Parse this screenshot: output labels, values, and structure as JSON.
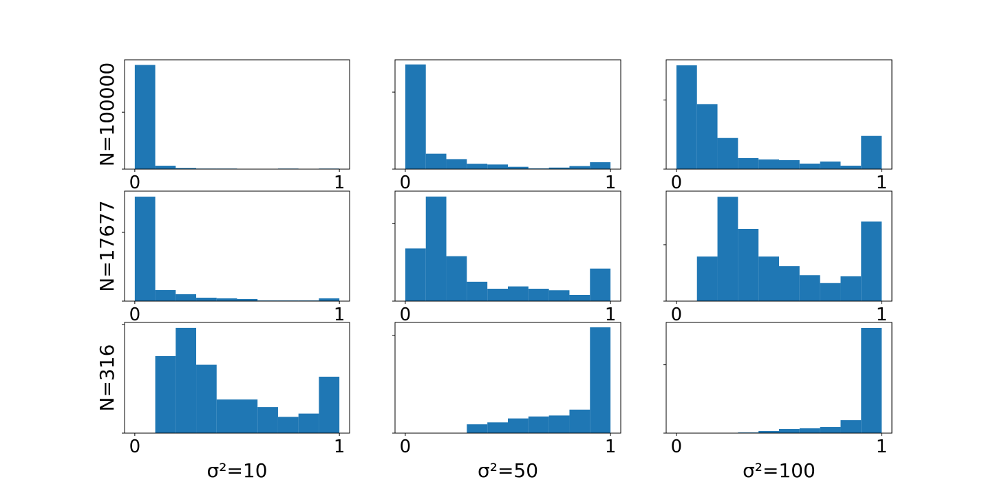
{
  "chart_data": [
    {
      "type": "histogram",
      "ylabel": "N=100000",
      "bins": [
        0,
        0.1,
        0.2,
        0.3,
        0.4,
        0.5,
        0.6,
        0.7,
        0.8,
        0.9,
        1
      ],
      "values": [
        1.83,
        0.06,
        0.02,
        0.01,
        0.01,
        0,
        0,
        0.01,
        0,
        0.01
      ],
      "color": "#1f77b4",
      "xlim": [
        -0.05,
        1.05
      ],
      "xticks": [
        0,
        1
      ],
      "ylim": [
        0,
        1.92
      ],
      "yticks": [
        0,
        1
      ]
    },
    {
      "type": "histogram",
      "bins": [
        0,
        0.1,
        0.2,
        0.3,
        0.4,
        0.5,
        0.6,
        0.7,
        0.8,
        0.9,
        1
      ],
      "values": [
        1.36,
        0.2,
        0.13,
        0.07,
        0.06,
        0.03,
        0.01,
        0.02,
        0.04,
        0.09
      ],
      "color": "#1f77b4",
      "xlim": [
        -0.05,
        1.05
      ],
      "xticks": [
        0,
        1
      ],
      "ylim": [
        0,
        1.42
      ],
      "yticks": [
        0,
        1
      ]
    },
    {
      "type": "histogram",
      "bins": [
        0,
        0.1,
        0.2,
        0.3,
        0.4,
        0.5,
        0.6,
        0.7,
        0.8,
        0.9,
        1
      ],
      "values": [
        1.5,
        0.94,
        0.45,
        0.16,
        0.14,
        0.13,
        0.08,
        0.11,
        0.05,
        0.48
      ],
      "color": "#1f77b4",
      "xlim": [
        -0.05,
        1.05
      ],
      "xticks": [
        0,
        1
      ],
      "ylim": [
        0,
        1.58
      ],
      "yticks": [
        0,
        1
      ]
    },
    {
      "type": "histogram",
      "ylabel": "N=17677",
      "bins": [
        0,
        0.1,
        0.2,
        0.3,
        0.4,
        0.5,
        0.6,
        0.7,
        0.8,
        0.9,
        1
      ],
      "values": [
        1.52,
        0.16,
        0.1,
        0.05,
        0.04,
        0.03,
        0.01,
        0.01,
        0.01,
        0.04
      ],
      "color": "#1f77b4",
      "xlim": [
        -0.05,
        1.05
      ],
      "xticks": [
        0,
        1
      ],
      "ylim": [
        0,
        1.6
      ],
      "yticks": [
        0,
        1
      ]
    },
    {
      "type": "histogram",
      "bins": [
        0,
        0.1,
        0.2,
        0.3,
        0.4,
        0.5,
        0.6,
        0.7,
        0.8,
        0.9,
        1
      ],
      "values": [
        0.68,
        1.35,
        0.58,
        0.25,
        0.16,
        0.19,
        0.16,
        0.14,
        0.08,
        0.42
      ],
      "color": "#1f77b4",
      "xlim": [
        -0.05,
        1.05
      ],
      "xticks": [
        0,
        1
      ],
      "ylim": [
        0,
        1.42
      ],
      "yticks": [
        0,
        1
      ]
    },
    {
      "type": "histogram",
      "bins": [
        0,
        0.1,
        0.2,
        0.3,
        0.4,
        0.5,
        0.6,
        0.7,
        0.8,
        0.9,
        1
      ],
      "values": [
        0,
        0.79,
        1.85,
        1.28,
        0.79,
        0.62,
        0.46,
        0.32,
        0.44,
        1.41
      ],
      "color": "#1f77b4",
      "xlim": [
        -0.05,
        1.05
      ],
      "xticks": [
        0,
        1
      ],
      "ylim": [
        0,
        1.95
      ],
      "yticks": [
        0,
        1
      ]
    },
    {
      "type": "histogram",
      "ylabel": "N=316",
      "xlabel": "σ²=10",
      "bins": [
        0,
        0.1,
        0.2,
        0.3,
        0.4,
        0.5,
        0.6,
        0.7,
        0.8,
        0.9,
        1
      ],
      "values": [
        0,
        0.71,
        0.97,
        0.63,
        0.31,
        0.31,
        0.24,
        0.15,
        0.18,
        0.52
      ],
      "color": "#1f77b4",
      "xlim": [
        -0.05,
        1.05
      ],
      "xticks": [
        0,
        1
      ],
      "ylim": [
        0,
        1.02
      ],
      "yticks": [
        0,
        1
      ]
    },
    {
      "type": "histogram",
      "xlabel": "σ²=50",
      "bins": [
        0,
        0.1,
        0.2,
        0.3,
        0.4,
        0.5,
        0.6,
        0.7,
        0.8,
        0.9,
        1
      ],
      "values": [
        0,
        0,
        0,
        0.09,
        0.11,
        0.15,
        0.17,
        0.18,
        0.24,
        1.08
      ],
      "color": "#1f77b4",
      "xlim": [
        -0.05,
        1.05
      ],
      "xticks": [
        0,
        1
      ],
      "ylim": [
        0,
        1.13
      ],
      "yticks": [
        0,
        1
      ]
    },
    {
      "type": "histogram",
      "xlabel": "σ²=100",
      "bins": [
        0,
        0.1,
        0.2,
        0.3,
        0.4,
        0.5,
        0.6,
        0.7,
        0.8,
        0.9,
        1
      ],
      "values": [
        0,
        0,
        0,
        0.01,
        0.03,
        0.06,
        0.07,
        0.09,
        0.19,
        1.54
      ],
      "color": "#1f77b4",
      "xlim": [
        -0.05,
        1.05
      ],
      "xticks": [
        0,
        1
      ],
      "ylim": [
        0,
        1.62
      ],
      "yticks": [
        0,
        1
      ]
    }
  ]
}
